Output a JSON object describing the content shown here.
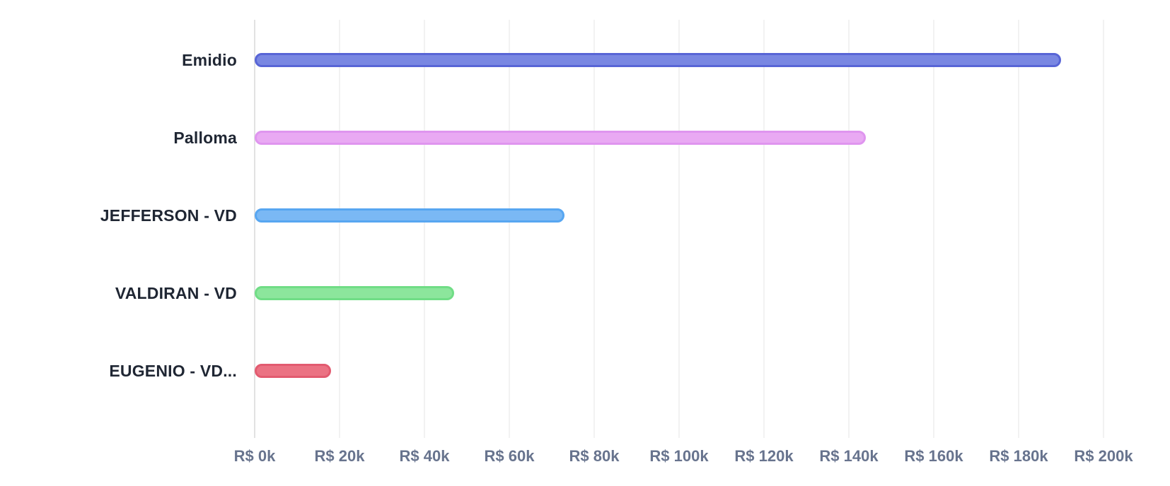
{
  "chart_data": {
    "type": "bar",
    "orientation": "horizontal",
    "title": "",
    "xlabel": "",
    "ylabel": "",
    "grid": true,
    "legend": false,
    "background": "#FFFFFF",
    "categories": [
      "Emidio",
      "Palloma",
      "JEFFERSON - VD",
      "VALDIRAN - VD",
      "EUGENIO - VD..."
    ],
    "values": [
      190000,
      144000,
      73000,
      47000,
      18000
    ],
    "xlim": [
      0,
      200000
    ],
    "x_tick_values": [
      0,
      20000,
      40000,
      60000,
      80000,
      100000,
      120000,
      140000,
      160000,
      180000,
      200000
    ],
    "x_ticks": [
      "R$ 0k",
      "R$ 20k",
      "R$ 40k",
      "R$ 60k",
      "R$ 80k",
      "R$ 100k",
      "R$ 120k",
      "R$ 140k",
      "R$ 160k",
      "R$ 180k",
      "R$ 200k"
    ],
    "currency_prefix": "R$",
    "bar_styles": [
      {
        "fill": "#7987E2",
        "border": "#5865D6"
      },
      {
        "fill": "#E9A9F3",
        "border": "#DF95EF"
      },
      {
        "fill": "#7AB8F4",
        "border": "#57A6F1"
      },
      {
        "fill": "#8CE69C",
        "border": "#70DD86"
      },
      {
        "fill": "#EB7283",
        "border": "#E25B70"
      }
    ],
    "category_label_color": "#1F2633",
    "axis_tick_color": "#68748E",
    "gridline_color": "#F2F2F2",
    "zero_line_color": "#E2E2E2"
  }
}
